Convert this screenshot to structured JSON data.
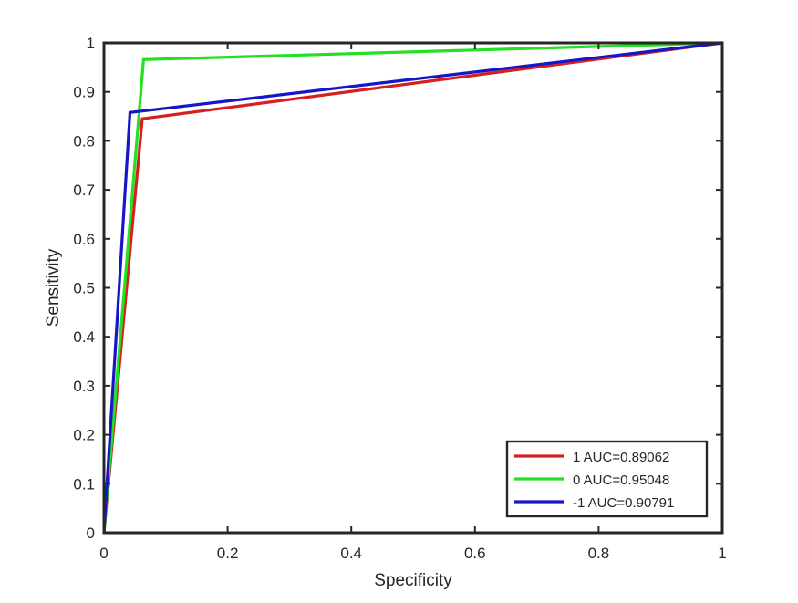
{
  "chart_data": {
    "type": "line",
    "title": "",
    "xlabel": "Specificity",
    "ylabel": "Sensitivity",
    "xlim": [
      0,
      1
    ],
    "ylim": [
      0,
      1
    ],
    "x_ticks": [
      "0",
      "0.2",
      "0.4",
      "0.6",
      "0.8",
      "1"
    ],
    "y_ticks": [
      "0",
      "0.1",
      "0.2",
      "0.3",
      "0.4",
      "0.5",
      "0.6",
      "0.7",
      "0.8",
      "0.9",
      "1"
    ],
    "grid": false,
    "legend_position": "bottom-right",
    "series": [
      {
        "name": "1 AUC=0.89062",
        "color": "#d62020",
        "points": [
          [
            0,
            0
          ],
          [
            0.062,
            0.845
          ],
          [
            1,
            1
          ]
        ]
      },
      {
        "name": "0 AUC=0.95048",
        "color": "#22e022",
        "points": [
          [
            0,
            0
          ],
          [
            0.064,
            0.966
          ],
          [
            1,
            1
          ]
        ]
      },
      {
        "name": "-1 AUC=0.90791",
        "color": "#1616c8",
        "points": [
          [
            0,
            0
          ],
          [
            0.042,
            0.858
          ],
          [
            1,
            1
          ]
        ]
      }
    ]
  }
}
